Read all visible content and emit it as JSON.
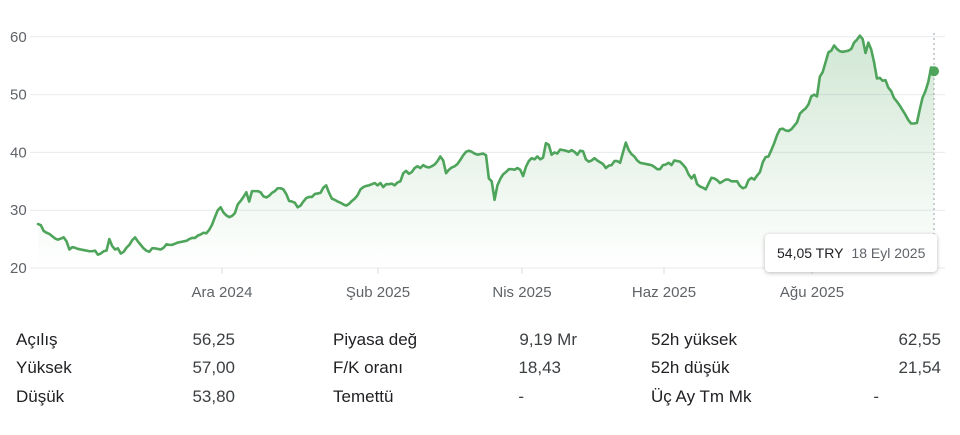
{
  "chart_data": {
    "type": "area",
    "ylim": [
      20,
      62
    ],
    "y_ticks": [
      20,
      30,
      40,
      50,
      60
    ],
    "x_ticks": [
      "Ara 2024",
      "Şub 2025",
      "Nis 2025",
      "Haz 2025",
      "Ağu 2025"
    ],
    "grid": "horizontal",
    "line_color": "#4ea45a",
    "series": [
      {
        "values": [
          27.6,
          27.4,
          26.4,
          26.1,
          25.9,
          25.5,
          25.1,
          24.9,
          25.1,
          25.3,
          24.6,
          23.2,
          23.6,
          23.5,
          23.3,
          23.2,
          23.1,
          23.0,
          22.9,
          22.9,
          23.0,
          22.3,
          22.5,
          22.9,
          23.0,
          25.0,
          23.8,
          23.2,
          23.4,
          22.5,
          22.8,
          23.5,
          24.0,
          24.8,
          25.3,
          24.6,
          24.0,
          23.4,
          23.0,
          22.8,
          23.4,
          23.4,
          23.3,
          23.2,
          23.5,
          24.1,
          24.0,
          24.0,
          24.2,
          24.4,
          24.5,
          24.6,
          24.7,
          25.0,
          25.2,
          25.2,
          25.6,
          25.8,
          26.1,
          26.0,
          26.6,
          27.5,
          28.8,
          30.0,
          30.5,
          29.6,
          29.1,
          28.8,
          29.0,
          29.5,
          31.0,
          31.6,
          32.3,
          33.1,
          31.5,
          33.3,
          33.3,
          33.3,
          33.1,
          32.4,
          32.2,
          32.5,
          33.0,
          33.3,
          33.8,
          33.8,
          33.6,
          32.8,
          31.6,
          31.5,
          31.3,
          30.5,
          30.8,
          31.5,
          32.1,
          32.3,
          32.3,
          32.8,
          32.9,
          33.0,
          33.9,
          34.3,
          33.0,
          32.0,
          31.8,
          31.5,
          31.3,
          31.0,
          30.8,
          31.1,
          31.6,
          32.0,
          32.6,
          33.6,
          34.0,
          34.2,
          34.3,
          34.5,
          34.7,
          34.3,
          34.7,
          34.0,
          34.5,
          34.5,
          34.6,
          34.3,
          34.8,
          35.0,
          36.4,
          36.8,
          36.3,
          36.6,
          37.3,
          37.6,
          37.3,
          37.8,
          37.5,
          37.4,
          37.6,
          37.9,
          38.5,
          39.3,
          38.6,
          36.4,
          37.0,
          37.4,
          37.6,
          38.0,
          38.7,
          39.5,
          40.1,
          40.3,
          40.1,
          39.8,
          39.6,
          39.7,
          39.8,
          39.5,
          35.5,
          35.0,
          31.8,
          34.3,
          35.4,
          36.2,
          36.6,
          37.1,
          37.1,
          37.0,
          37.3,
          37.0,
          35.9,
          37.5,
          38.5,
          39.0,
          38.8,
          39.3,
          38.8,
          39.1,
          41.6,
          41.3,
          39.6,
          40.0,
          39.8,
          40.5,
          40.4,
          40.3,
          40.1,
          40.4,
          40.1,
          39.6,
          40.3,
          40.2,
          38.8,
          38.4,
          38.6,
          39.0,
          38.6,
          38.3,
          38.0,
          37.3,
          37.7,
          37.8,
          38.5,
          38.5,
          38.2,
          40.0,
          41.7,
          40.4,
          39.7,
          39.3,
          38.6,
          38.2,
          38.1,
          38.0,
          37.9,
          37.8,
          37.5,
          37.1,
          37.1,
          37.8,
          37.9,
          38.2,
          37.8,
          38.6,
          38.5,
          38.4,
          37.9,
          37.3,
          36.2,
          35.5,
          36.1,
          34.5,
          34.1,
          33.9,
          33.6,
          34.6,
          35.6,
          35.5,
          35.2,
          34.7,
          35.0,
          35.3,
          35.3,
          35.0,
          35.0,
          35.0,
          34.2,
          33.8,
          34.0,
          35.2,
          35.6,
          35.3,
          36.0,
          36.6,
          38.3,
          39.2,
          39.3,
          40.4,
          41.6,
          43.0,
          44.0,
          44.1,
          43.8,
          43.7,
          44.0,
          44.6,
          45.2,
          46.7,
          47.2,
          47.6,
          48.3,
          49.7,
          50.0,
          49.7,
          53.1,
          53.9,
          55.6,
          57.3,
          57.6,
          58.5,
          57.9,
          57.5,
          57.4,
          57.5,
          57.6,
          57.9,
          59.0,
          59.5,
          60.2,
          59.6,
          57.2,
          59.0,
          57.8,
          55.6,
          52.8,
          52.9,
          52.4,
          52.5,
          51.2,
          50.6,
          49.4,
          48.8,
          48.1,
          47.3,
          46.5,
          45.6,
          45.0,
          45.0,
          45.1,
          47.4,
          49.5,
          50.6,
          52.2,
          54.7,
          54.05
        ]
      }
    ]
  },
  "tooltip": {
    "price": "54,05 TRY",
    "date": "18 Eyl 2025"
  },
  "stats": [
    [
      {
        "label": "Açılış",
        "value": "56,25"
      },
      {
        "label": "Yüksek",
        "value": "57,00"
      },
      {
        "label": "Düşük",
        "value": "53,80"
      }
    ],
    [
      {
        "label": "Piyasa değ",
        "value": "9,19 Mr"
      },
      {
        "label": "F/K oranı",
        "value": "18,43"
      },
      {
        "label": "Temettü",
        "value": "-"
      }
    ],
    [
      {
        "label": "52h yüksek",
        "value": "62,55"
      },
      {
        "label": "52h düşük",
        "value": "21,54"
      },
      {
        "label": "Üç Ay Tm Mk",
        "value": "-"
      }
    ]
  ]
}
